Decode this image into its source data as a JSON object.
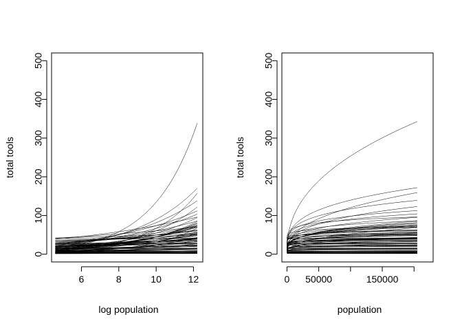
{
  "chart_data": [
    {
      "type": "line",
      "title": "",
      "xlabel": "log population",
      "ylabel": "total tools",
      "xlim": [
        4.4,
        12.5
      ],
      "ylim": [
        -20,
        520
      ],
      "x_scale": "log population",
      "xticks": [
        6,
        8,
        10,
        12
      ],
      "yticks": [
        0,
        100,
        200,
        300,
        400,
        500
      ],
      "grid": false,
      "legend": "none",
      "series_color": "#000000",
      "curves": [
        {
          "a": 0.7,
          "b": 0.42
        },
        {
          "a": 0.3,
          "b": 0.39
        },
        {
          "a": -0.3,
          "b": 0.37
        },
        {
          "a": 0.9,
          "b": 0.32
        },
        {
          "a": 1.5,
          "b": 0.25
        },
        {
          "a": 2.0,
          "b": 0.19
        },
        {
          "a": 1.2,
          "b": 0.26
        },
        {
          "a": 2.4,
          "b": 0.12
        },
        {
          "a": 2.7,
          "b": 0.08
        },
        {
          "a": 3.1,
          "b": 0.04
        },
        {
          "a": 3.0,
          "b": 0.05
        },
        {
          "a": 2.2,
          "b": 0.15
        },
        {
          "a": 1.8,
          "b": 0.2
        },
        {
          "a": 2.9,
          "b": 0.1
        },
        {
          "a": 1.1,
          "b": 0.27
        },
        {
          "a": 3.3,
          "b": 0.0
        },
        {
          "a": 3.4,
          "b": -0.03
        },
        {
          "a": 2.5,
          "b": 0.1
        },
        {
          "a": 2.1,
          "b": 0.16
        },
        {
          "a": 1.6,
          "b": 0.22
        },
        {
          "a": 2.8,
          "b": 0.06
        },
        {
          "a": 2.6,
          "b": 0.09
        },
        {
          "a": 2.3,
          "b": 0.13
        },
        {
          "a": 1.9,
          "b": 0.17
        },
        {
          "a": 2.4,
          "b": 0.11
        },
        {
          "a": 1.7,
          "b": 0.21
        },
        {
          "a": 3.2,
          "b": 0.01
        },
        {
          "a": 3.0,
          "b": 0.03
        },
        {
          "a": 2.0,
          "b": 0.14
        },
        {
          "a": 1.4,
          "b": 0.24
        },
        {
          "a": 2.2,
          "b": 0.12
        },
        {
          "a": 2.6,
          "b": 0.07
        },
        {
          "a": 2.8,
          "b": 0.04
        },
        {
          "a": 1.5,
          "b": 0.2
        },
        {
          "a": 1.2,
          "b": 0.23
        },
        {
          "a": 0.9,
          "b": 0.29
        },
        {
          "a": 1.3,
          "b": 0.18
        },
        {
          "a": 1.0,
          "b": 0.21
        },
        {
          "a": 0.8,
          "b": 0.24
        },
        {
          "a": 1.6,
          "b": 0.13
        },
        {
          "a": 0.6,
          "b": 0.26
        },
        {
          "a": 1.1,
          "b": 0.16
        },
        {
          "a": 0.5,
          "b": 0.23
        },
        {
          "a": 1.4,
          "b": 0.1
        },
        {
          "a": 0.9,
          "b": 0.15
        },
        {
          "a": 1.8,
          "b": 0.05
        },
        {
          "a": 1.2,
          "b": 0.08
        },
        {
          "a": 2.0,
          "b": 0.0
        },
        {
          "a": 1.5,
          "b": 0.04
        },
        {
          "a": 1.0,
          "b": 0.09
        },
        {
          "a": 0.7,
          "b": 0.12
        },
        {
          "a": 1.7,
          "b": 0.02
        },
        {
          "a": 0.4,
          "b": 0.14
        },
        {
          "a": 1.3,
          "b": 0.03
        },
        {
          "a": 0.6,
          "b": 0.08
        },
        {
          "a": 1.9,
          "b": -0.04
        },
        {
          "a": 0.2,
          "b": 0.13
        },
        {
          "a": 0.8,
          "b": 0.05
        },
        {
          "a": 1.1,
          "b": 0.02
        },
        {
          "a": 0.3,
          "b": 0.09
        },
        {
          "a": 1.6,
          "b": -0.03
        },
        {
          "a": 0.5,
          "b": 0.04
        },
        {
          "a": 0.0,
          "b": 0.11
        },
        {
          "a": 0.9,
          "b": 0.0
        },
        {
          "a": 1.4,
          "b": -0.05
        },
        {
          "a": 0.2,
          "b": 0.05
        },
        {
          "a": 0.7,
          "b": 0.01
        },
        {
          "a": -0.2,
          "b": 0.1
        },
        {
          "a": 1.2,
          "b": -0.06
        },
        {
          "a": 0.4,
          "b": 0.02
        },
        {
          "a": 1.8,
          "b": -0.08
        },
        {
          "a": 1.0,
          "b": -0.02
        },
        {
          "a": 1.5,
          "b": -0.04
        },
        {
          "a": 2.0,
          "b": -0.05
        },
        {
          "a": 2.3,
          "b": -0.02
        },
        {
          "a": 2.5,
          "b": 0.02
        },
        {
          "a": 2.1,
          "b": 0.04
        },
        {
          "a": 1.7,
          "b": 0.08
        },
        {
          "a": 1.3,
          "b": 0.12
        },
        {
          "a": 2.4,
          "b": 0.06
        },
        {
          "a": 1.9,
          "b": 0.1
        },
        {
          "a": 2.7,
          "b": 0.0
        },
        {
          "a": 2.2,
          "b": 0.08
        },
        {
          "a": 2.9,
          "b": -0.02
        },
        {
          "a": 2.6,
          "b": 0.03
        },
        {
          "a": 2.5,
          "b": 0.16
        },
        {
          "a": 2.2,
          "b": 0.2
        },
        {
          "a": 3.0,
          "b": 0.09
        },
        {
          "a": 2.7,
          "b": 0.13
        },
        {
          "a": 3.2,
          "b": 0.06
        },
        {
          "a": 2.0,
          "b": 0.24
        },
        {
          "a": 2.4,
          "b": 0.19
        },
        {
          "a": 1.6,
          "b": 0.29
        },
        {
          "a": 2.8,
          "b": 0.11
        },
        {
          "a": 3.3,
          "b": 0.05
        },
        {
          "a": 3.1,
          "b": 0.12
        },
        {
          "a": 3.5,
          "b": 0.02
        },
        {
          "a": 3.4,
          "b": 0.07
        },
        {
          "a": 3.6,
          "b": 0.03
        },
        {
          "a": 3.7,
          "b": 0.0
        }
      ]
    },
    {
      "type": "line",
      "title": "",
      "xlabel": "population",
      "ylabel": "total tools",
      "xlim": [
        -8000,
        230000
      ],
      "ylim": [
        -20,
        520
      ],
      "xticks": [
        0,
        50000,
        100000,
        150000,
        200000
      ],
      "xtick_labels": [
        "0",
        "50000",
        "",
        "150000",
        ""
      ],
      "yticks": [
        0,
        100,
        200,
        300,
        400,
        500
      ],
      "grid": false,
      "legend": "none",
      "series_color": "#000000",
      "curves_same_as_left": true
    }
  ]
}
